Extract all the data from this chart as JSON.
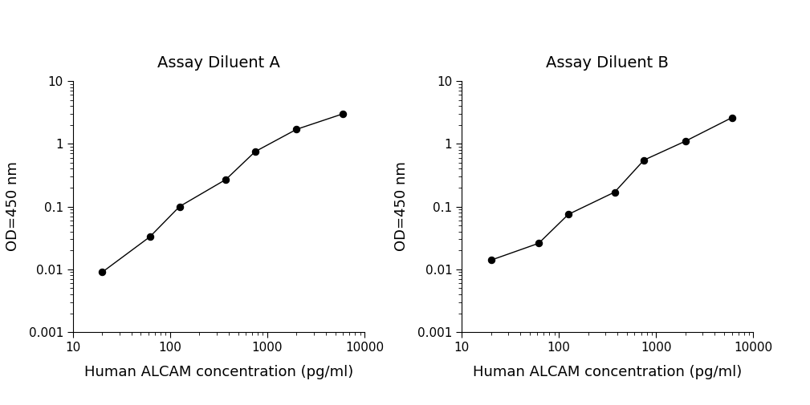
{
  "left": {
    "title": "Assay Diluent A",
    "x": [
      20,
      62,
      125,
      375,
      750,
      2000,
      6000
    ],
    "y": [
      0.009,
      0.033,
      0.1,
      0.27,
      0.75,
      1.7,
      3.0
    ],
    "xlabel": "Human ALCAM concentration (pg/ml)",
    "ylabel": "OD=450 nm",
    "xlim": [
      10,
      10000
    ],
    "ylim": [
      0.001,
      10
    ]
  },
  "right": {
    "title": "Assay Diluent B",
    "x": [
      20,
      62,
      125,
      375,
      750,
      2000,
      6000
    ],
    "y": [
      0.014,
      0.026,
      0.075,
      0.17,
      0.55,
      1.1,
      2.6
    ],
    "xlabel": "Human ALCAM concentration (pg/ml)",
    "ylabel": "OD=450 nm",
    "xlim": [
      10,
      10000
    ],
    "ylim": [
      0.001,
      10
    ]
  },
  "line_color": "#000000",
  "marker": "o",
  "marker_size": 6,
  "marker_facecolor": "#000000",
  "line_width": 1.0,
  "title_fontsize": 14,
  "label_fontsize": 13,
  "tick_fontsize": 11,
  "background_color": "#ffffff",
  "x_ticks": [
    10,
    100,
    1000,
    10000
  ],
  "y_ticks": [
    0.001,
    0.01,
    0.1,
    1,
    10
  ]
}
